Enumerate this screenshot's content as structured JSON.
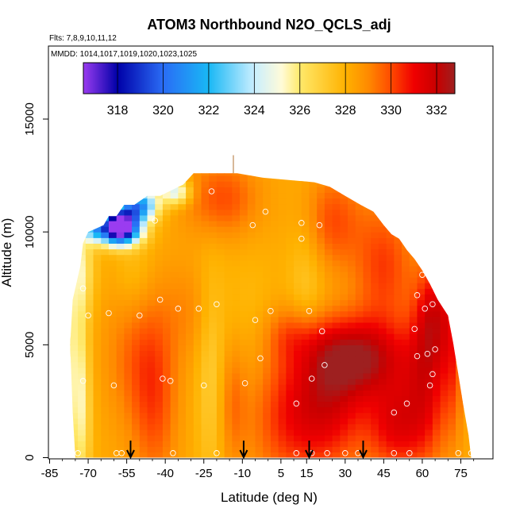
{
  "chart_data": {
    "type": "heatmap",
    "title": "ATOM3 Northbound N2O_QCLS_adj",
    "annotations": {
      "flights": "Flts: 7,8,9,10,11,12",
      "dates": "MMDD: 1014,1017,1019,1020,1023,1025"
    },
    "xlabel": "Latitude (deg N)",
    "ylabel": "Altitude (m)",
    "xlim": [
      -86,
      85
    ],
    "ylim": [
      0,
      18000
    ],
    "xticks": [
      -85,
      -70,
      -55,
      -40,
      -25,
      -10,
      5,
      15,
      30,
      45,
      60,
      75
    ],
    "xtick_labels": [
      "-85",
      "-70",
      "-55",
      "-40",
      "-25",
      "-10",
      "5",
      "15",
      "30",
      "45",
      "60",
      "75"
    ],
    "xtick_minor": [
      -80,
      -75,
      -65,
      -60,
      -50,
      -45,
      -35,
      -30,
      -20,
      -15,
      -5,
      0,
      10,
      20,
      25,
      35,
      40,
      50,
      55,
      65,
      70,
      80
    ],
    "yticks": [
      0,
      5000,
      10000,
      15000
    ],
    "ytick_labels": [
      "0",
      "5000",
      "10000",
      "15000"
    ],
    "colorbar": {
      "range": [
        316.5,
        332.8
      ],
      "ticks": [
        318,
        320,
        322,
        324,
        326,
        328,
        330,
        332
      ],
      "tick_labels": [
        "318",
        "320",
        "322",
        "324",
        "326",
        "328",
        "330",
        "332"
      ],
      "stops": [
        {
          "v": 316.5,
          "c": "#9a3cf0"
        },
        {
          "v": 318.0,
          "c": "#0000a8"
        },
        {
          "v": 320.0,
          "c": "#2a6cf5"
        },
        {
          "v": 322.0,
          "c": "#19b8f5"
        },
        {
          "v": 324.0,
          "c": "#c9eeff"
        },
        {
          "v": 325.2,
          "c": "#fffbd8"
        },
        {
          "v": 326.0,
          "c": "#ffe96a"
        },
        {
          "v": 328.0,
          "c": "#ffb200"
        },
        {
          "v": 329.0,
          "c": "#ff8a00"
        },
        {
          "v": 330.0,
          "c": "#ff4a00"
        },
        {
          "v": 331.0,
          "c": "#f00000"
        },
        {
          "v": 332.0,
          "c": "#c80000"
        },
        {
          "v": 332.8,
          "c": "#9e2020"
        }
      ]
    },
    "envelope": [
      [
        -73,
        8500
      ],
      [
        -72,
        9500
      ],
      [
        -70,
        10000
      ],
      [
        -64,
        10300
      ],
      [
        -62,
        10700
      ],
      [
        -59,
        10700
      ],
      [
        -56,
        11200
      ],
      [
        -52,
        11200
      ],
      [
        -47,
        11600
      ],
      [
        -42,
        11600
      ],
      [
        -33,
        12100
      ],
      [
        -29,
        12600
      ],
      [
        -12,
        12600
      ],
      [
        -2,
        12400
      ],
      [
        8,
        12300
      ],
      [
        18,
        12200
      ],
      [
        24,
        12000
      ],
      [
        30,
        11600
      ],
      [
        36,
        11200
      ],
      [
        41,
        10900
      ],
      [
        45,
        10300
      ],
      [
        48,
        9900
      ],
      [
        51,
        9700
      ],
      [
        54,
        9200
      ],
      [
        57,
        8800
      ],
      [
        60,
        8300
      ],
      [
        63,
        7700
      ],
      [
        66,
        7000
      ],
      [
        70,
        6300
      ],
      [
        72,
        5100
      ],
      [
        74,
        3700
      ],
      [
        76,
        2300
      ],
      [
        78,
        1000
      ],
      [
        79,
        0
      ],
      [
        -75,
        0
      ],
      [
        -76,
        2000
      ],
      [
        -77,
        5000
      ],
      [
        -76,
        7000
      ]
    ],
    "field": {
      "base": 328.2,
      "features": [
        {
          "lat": -73,
          "alt": 1800,
          "slat": 3,
          "salt": 2500,
          "dv": -2.0
        },
        {
          "lat": -75,
          "alt": 5000,
          "slat": 3,
          "salt": 3000,
          "dv": -1.8
        },
        {
          "lat": -73,
          "alt": 8500,
          "slat": 4,
          "salt": 1500,
          "dv": -2.1
        },
        {
          "lat": -68,
          "alt": 10200,
          "slat": 3,
          "salt": 400,
          "dv": -4.0
        },
        {
          "lat": -58,
          "alt": 10400,
          "slat": 5,
          "salt": 500,
          "dv": -11.0
        },
        {
          "lat": -58,
          "alt": 9900,
          "slat": 6,
          "salt": 400,
          "dv": -5.0
        },
        {
          "lat": -50,
          "alt": 11200,
          "slat": 5,
          "salt": 500,
          "dv": -7.0
        },
        {
          "lat": -36,
          "alt": 11800,
          "slat": 4,
          "salt": 400,
          "dv": -4.0
        },
        {
          "lat": -52,
          "alt": 8000,
          "slat": 6,
          "salt": 1800,
          "dv": -1.0
        },
        {
          "lat": -50,
          "alt": 5000,
          "slat": 9,
          "salt": 2500,
          "dv": 1.6
        },
        {
          "lat": -44,
          "alt": 2000,
          "slat": 6,
          "salt": 2500,
          "dv": 1.4
        },
        {
          "lat": -22,
          "alt": 3500,
          "slat": 4,
          "salt": 3500,
          "dv": -1.2
        },
        {
          "lat": -30,
          "alt": 6500,
          "slat": 7,
          "salt": 1500,
          "dv": 0.7
        },
        {
          "lat": -8,
          "alt": 6500,
          "slat": 8,
          "salt": 2000,
          "dv": -0.4
        },
        {
          "lat": -14,
          "alt": 2500,
          "slat": 4,
          "salt": 2000,
          "dv": 1.2
        },
        {
          "lat": 5,
          "alt": 1500,
          "slat": 10,
          "salt": 2000,
          "dv": 1.3
        },
        {
          "lat": 10,
          "alt": 5500,
          "slat": 8,
          "salt": 900,
          "dv": 1.4
        },
        {
          "lat": 22,
          "alt": 2300,
          "slat": 12,
          "salt": 2000,
          "dv": 3.2
        },
        {
          "lat": 35,
          "alt": 4500,
          "slat": 14,
          "salt": 1200,
          "dv": 3.8
        },
        {
          "lat": 50,
          "alt": 1500,
          "slat": 8,
          "salt": 1500,
          "dv": 2.8
        },
        {
          "lat": 62,
          "alt": 3500,
          "slat": 6,
          "salt": 2500,
          "dv": 2.6
        },
        {
          "lat": 65,
          "alt": 6500,
          "slat": 5,
          "salt": 1500,
          "dv": 2.4
        },
        {
          "lat": 45,
          "alt": 8500,
          "slat": 8,
          "salt": 2000,
          "dv": 2.0
        },
        {
          "lat": 25,
          "alt": 10500,
          "slat": 8,
          "salt": 1500,
          "dv": 1.8
        },
        {
          "lat": 15,
          "alt": 7500,
          "slat": 5,
          "salt": 2500,
          "dv": -1.0
        },
        {
          "lat": -18,
          "alt": 11500,
          "slat": 10,
          "salt": 1200,
          "dv": 1.8
        },
        {
          "lat": 72,
          "alt": 4500,
          "slat": 3,
          "salt": 2500,
          "dv": 1.5
        }
      ]
    },
    "sample_points": [
      [
        -74,
        200
      ],
      [
        -72,
        7500
      ],
      [
        -72,
        3400
      ],
      [
        -70,
        6300
      ],
      [
        -68,
        10500
      ],
      [
        -62,
        6400
      ],
      [
        -60,
        3200
      ],
      [
        -59,
        200
      ],
      [
        -57,
        200
      ],
      [
        -50,
        6300
      ],
      [
        -44,
        10500
      ],
      [
        -42,
        7000
      ],
      [
        -41,
        3500
      ],
      [
        -38,
        3400
      ],
      [
        -37,
        200
      ],
      [
        -35,
        6600
      ],
      [
        -27,
        6600
      ],
      [
        -25,
        3200
      ],
      [
        -22,
        11800
      ],
      [
        -20,
        6800
      ],
      [
        -20,
        200
      ],
      [
        -9,
        3300
      ],
      [
        -6,
        10300
      ],
      [
        -5,
        6100
      ],
      [
        -3,
        4400
      ],
      [
        -1,
        10900
      ],
      [
        1,
        6500
      ],
      [
        11,
        2400
      ],
      [
        11,
        200
      ],
      [
        13,
        9700
      ],
      [
        13,
        10400
      ],
      [
        16,
        6500
      ],
      [
        17,
        3500
      ],
      [
        17,
        200
      ],
      [
        20,
        10300
      ],
      [
        21,
        5600
      ],
      [
        22,
        4100
      ],
      [
        23,
        200
      ],
      [
        30,
        200
      ],
      [
        35,
        200
      ],
      [
        36,
        11500
      ],
      [
        49,
        200
      ],
      [
        49,
        2000
      ],
      [
        54,
        2400
      ],
      [
        55,
        200
      ],
      [
        57,
        5700
      ],
      [
        58,
        7200
      ],
      [
        58,
        4500
      ],
      [
        60,
        8100
      ],
      [
        61,
        6600
      ],
      [
        62,
        4600
      ],
      [
        63,
        3200
      ],
      [
        64,
        3700
      ],
      [
        64,
        6800
      ],
      [
        65,
        4800
      ],
      [
        71,
        6600
      ],
      [
        74,
        200
      ],
      [
        79,
        200
      ]
    ],
    "arrows": [
      -53.5,
      -9.5,
      16,
      37
    ]
  }
}
